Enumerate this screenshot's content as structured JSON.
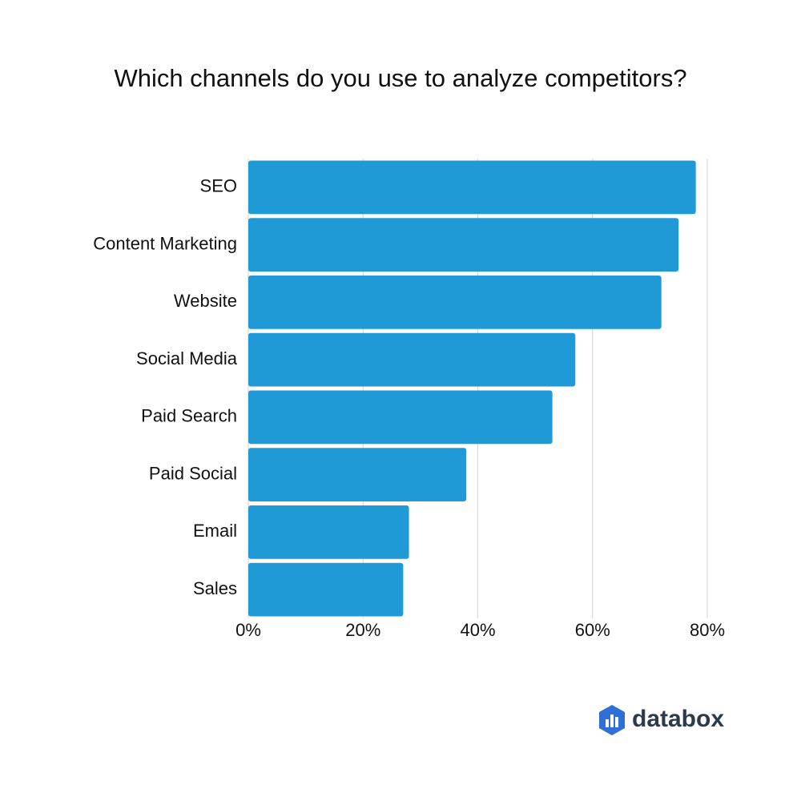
{
  "chart_data": {
    "type": "bar",
    "orientation": "horizontal",
    "title": "Which channels do you use to analyze competitors?",
    "categories": [
      "SEO",
      "Content Marketing",
      "Website",
      "Social Media",
      "Paid Search",
      "Paid Social",
      "Email",
      "Sales"
    ],
    "values": [
      78,
      75,
      72,
      57,
      53,
      38,
      28,
      27
    ],
    "color": "#1f9ad6",
    "xlim": [
      0,
      80
    ],
    "xticks": [
      {
        "value": 0,
        "label": "0%"
      },
      {
        "value": 20,
        "label": "20%"
      },
      {
        "value": 40,
        "label": "40%"
      },
      {
        "value": 60,
        "label": "60%"
      },
      {
        "value": 80,
        "label": "80%"
      }
    ],
    "grid": true
  },
  "logo": {
    "text": "databox"
  }
}
